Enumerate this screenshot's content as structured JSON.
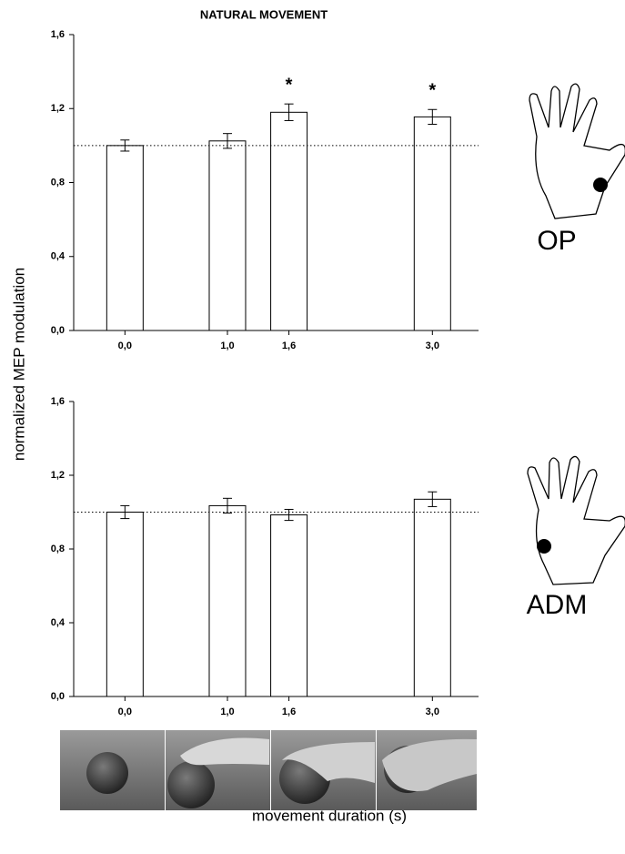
{
  "y_label": "normalized MEP modulation",
  "x_label": "movement duration (s)",
  "chart_data": [
    {
      "type": "bar",
      "title": "NATURAL MOVEMENT",
      "muscle": "OP",
      "x": [
        0,
        1,
        1.6,
        3
      ],
      "values": [
        1.0,
        1.025,
        1.18,
        1.155
      ],
      "errors": [
        0.03,
        0.04,
        0.045,
        0.04
      ],
      "annotations": [
        {
          "x": 1.6,
          "text": "*"
        },
        {
          "x": 3,
          "text": "*"
        }
      ],
      "reference_line": 1.0,
      "xlim": [
        -0.5,
        3.45
      ],
      "xticks": [
        {
          "value": 0,
          "label": "0,0"
        },
        {
          "value": 1,
          "label": "1,0"
        },
        {
          "value": 1.6,
          "label": "1,6"
        },
        {
          "value": 3,
          "label": "3,0"
        }
      ],
      "ylim": [
        0,
        1.6
      ],
      "yticks": [
        {
          "value": 0,
          "label": "0,0"
        },
        {
          "value": 0.4,
          "label": "0,4"
        },
        {
          "value": 0.8,
          "label": "0,8"
        },
        {
          "value": 1.2,
          "label": "1,2"
        },
        {
          "value": 1.6,
          "label": "1,6"
        }
      ]
    },
    {
      "type": "bar",
      "muscle": "ADM",
      "x": [
        0,
        1,
        1.6,
        3
      ],
      "values": [
        1.0,
        1.035,
        0.985,
        1.07
      ],
      "errors": [
        0.035,
        0.04,
        0.03,
        0.04
      ],
      "reference_line": 1.0,
      "xlim": [
        -0.5,
        3.45
      ],
      "xticks": [
        {
          "value": 0,
          "label": "0,0"
        },
        {
          "value": 1,
          "label": "1,0"
        },
        {
          "value": 1.6,
          "label": "1,6"
        },
        {
          "value": 3,
          "label": "3,0"
        }
      ],
      "ylim": [
        0,
        1.6
      ],
      "yticks": [
        {
          "value": 0,
          "label": "0,0"
        },
        {
          "value": 0.4,
          "label": "0,4"
        },
        {
          "value": 0.8,
          "label": "0,8"
        },
        {
          "value": 1.2,
          "label": "1,2"
        },
        {
          "value": 1.6,
          "label": "1,6"
        }
      ]
    }
  ]
}
